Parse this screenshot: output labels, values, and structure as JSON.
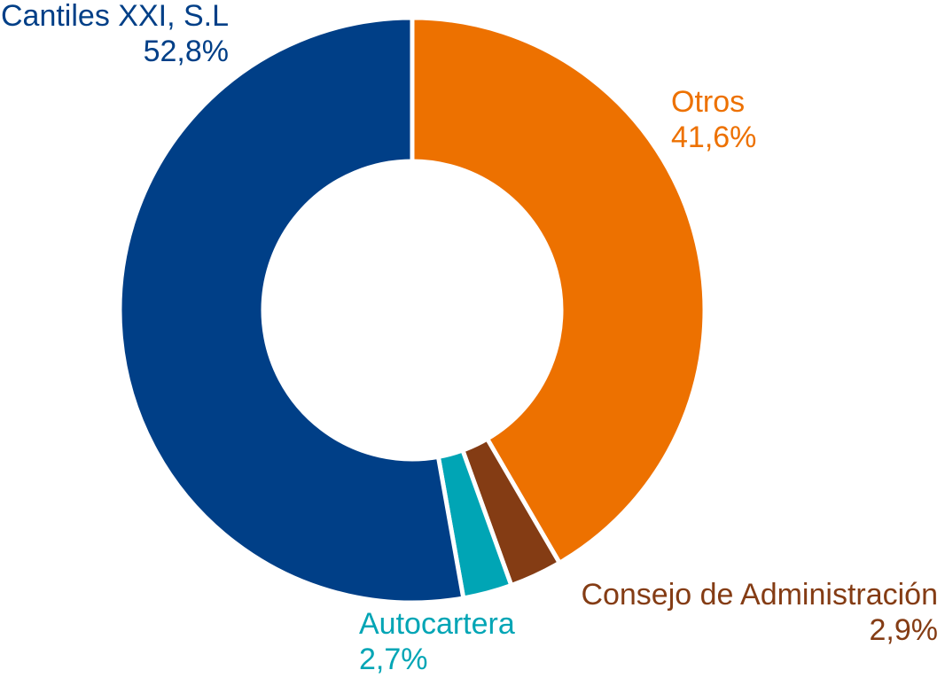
{
  "chart_data": {
    "type": "pie",
    "categories": [
      "Otros",
      "Consejo de Administración",
      "Autocartera",
      "Cantiles XXI, S.L"
    ],
    "values": [
      41.6,
      2.9,
      2.7,
      52.8
    ],
    "value_labels": [
      "41,6%",
      "2,9%",
      "2,7%",
      "52,8%"
    ],
    "colors": [
      "#ed7100",
      "#843c14",
      "#00a5b5",
      "#003f87"
    ]
  }
}
